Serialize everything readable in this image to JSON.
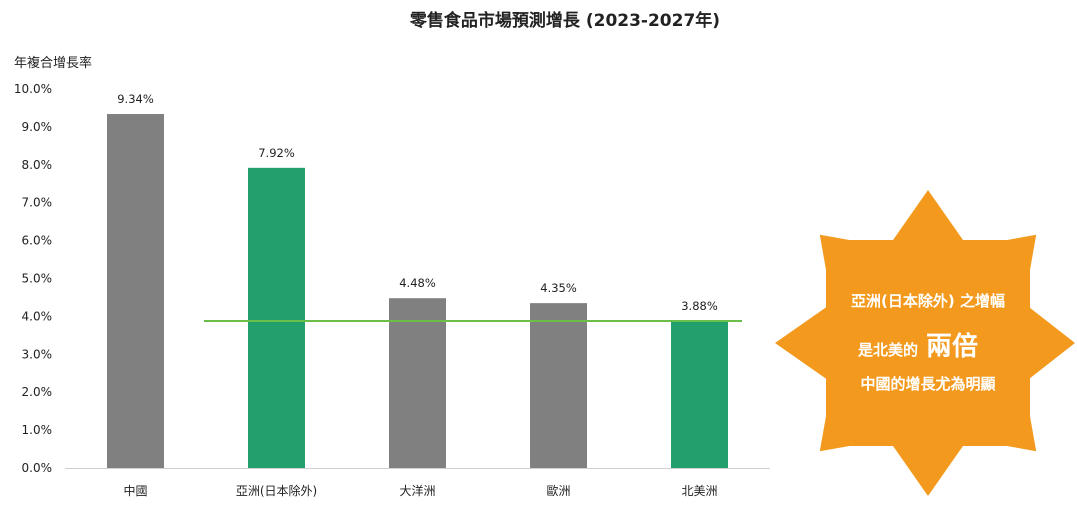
{
  "chart_data": {
    "type": "bar",
    "title": "零售食品市場預測增長 (2023-2027年)",
    "ylabel": "年複合增長率",
    "xlabel": "",
    "ylim": [
      0,
      10
    ],
    "y_ticks": [
      "0.0%",
      "1.0%",
      "2.0%",
      "3.0%",
      "4.0%",
      "5.0%",
      "6.0%",
      "7.0%",
      "8.0%",
      "9.0%",
      "10.0%"
    ],
    "grid": false,
    "legend": "none",
    "categories": [
      "中國",
      "亞洲(日本除外)",
      "大洋洲",
      "歐洲",
      "北美洲"
    ],
    "values": [
      9.34,
      7.92,
      4.48,
      4.35,
      3.88
    ],
    "data_labels": [
      "9.34%",
      "7.92%",
      "4.48%",
      "4.35%",
      "3.88%"
    ],
    "bar_colors": [
      "#808080",
      "#21a06c",
      "#808080",
      "#808080",
      "#21a06c"
    ],
    "reference_line": {
      "value": 3.88,
      "color": "#6abf4b"
    }
  },
  "callout": {
    "line1": "亞洲(日本除外) 之增幅",
    "line2_prefix": "是北美的",
    "line2_emphasis": "兩倍",
    "line3": "中國的增長尤為明顯",
    "color": "#f39a1e"
  }
}
